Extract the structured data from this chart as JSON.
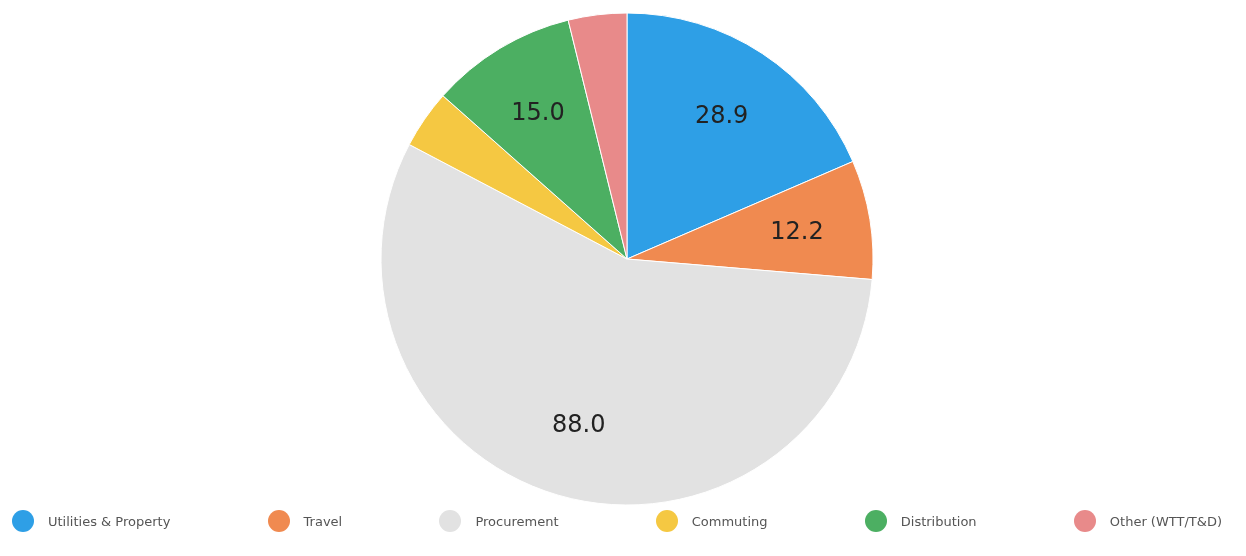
{
  "chart_data": {
    "type": "pie",
    "categories": [
      "Utilities & Property",
      "Travel",
      "Procurement",
      "Commuting",
      "Distribution",
      "Other (WTT/T&D)"
    ],
    "values": [
      28.9,
      12.2,
      88.0,
      6.0,
      15.0,
      6.0
    ],
    "colors": [
      "#2e9fe6",
      "#f08a50",
      "#e2e2e2",
      "#f5c842",
      "#4caf62",
      "#e88a8a"
    ],
    "value_labels": [
      "28.9",
      "12.2",
      "88.0",
      null,
      "15.0",
      null
    ],
    "legend": "bottom"
  }
}
